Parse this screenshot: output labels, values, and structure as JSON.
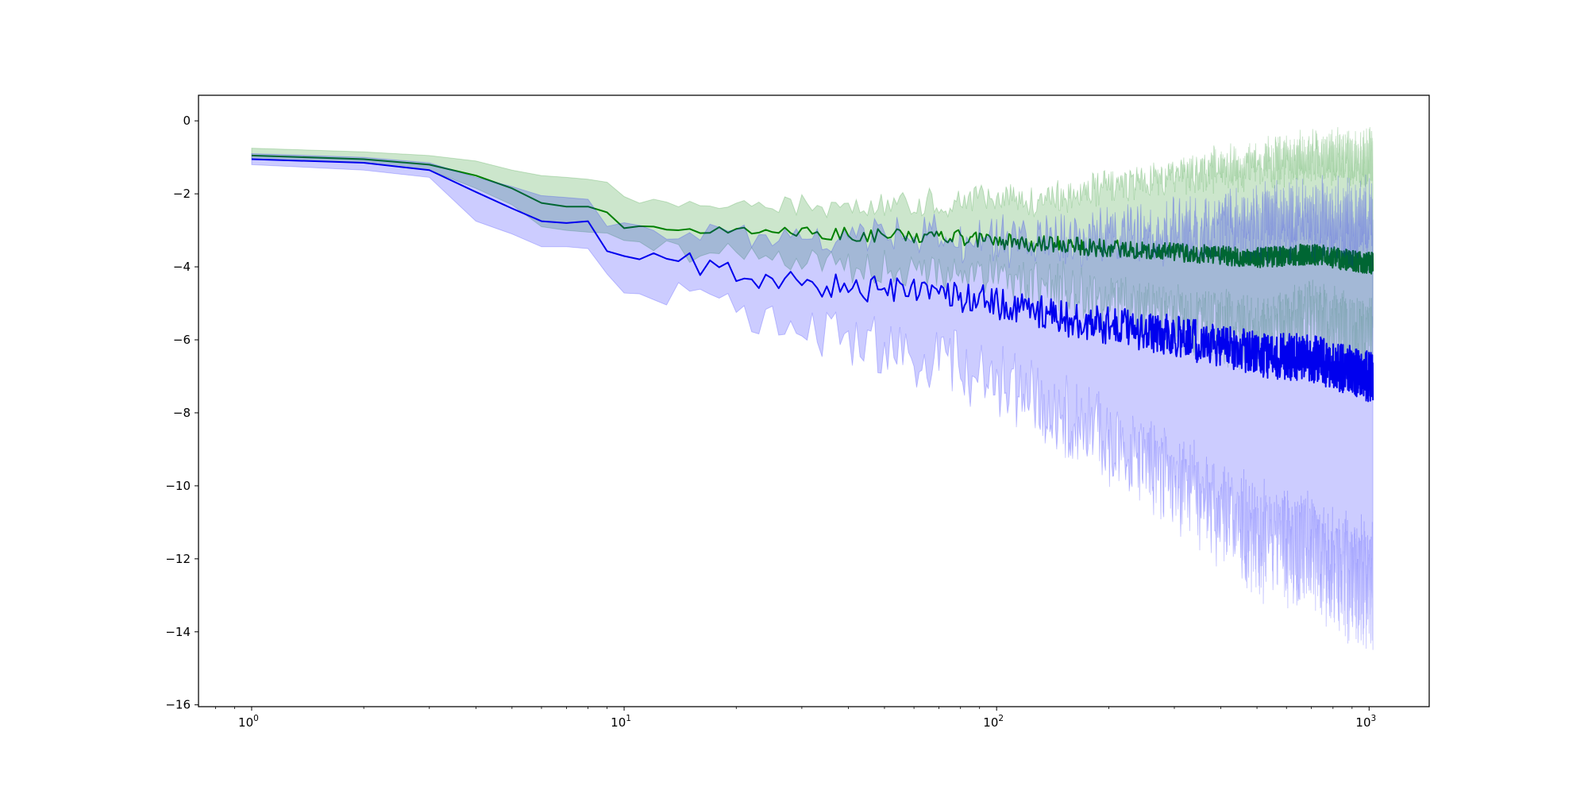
{
  "chart_data": {
    "type": "line",
    "title": "",
    "xlabel": "",
    "ylabel": "",
    "xscale": "log",
    "xlim": [
      0.72,
      1450
    ],
    "ylim": [
      -16.05,
      0.7
    ],
    "grid": false,
    "legend": "none",
    "x_ticks": [
      {
        "base": "10",
        "exp": "0",
        "value": 1
      },
      {
        "base": "10",
        "exp": "1",
        "value": 10
      },
      {
        "base": "10",
        "exp": "2",
        "value": 100
      },
      {
        "base": "10",
        "exp": "3",
        "value": 1000
      }
    ],
    "y_ticks": [
      {
        "label": "0",
        "value": 0
      },
      {
        "label": "−2",
        "value": -2
      },
      {
        "label": "−4",
        "value": -4
      },
      {
        "label": "−6",
        "value": -6
      },
      {
        "label": "−8",
        "value": -8
      },
      {
        "label": "−10",
        "value": -10
      },
      {
        "label": "−12",
        "value": -12
      },
      {
        "label": "−14",
        "value": -14
      },
      {
        "label": "−16",
        "value": -16
      }
    ],
    "x_range": [
      1,
      1024
    ],
    "series": [
      {
        "color": "#008000",
        "band_color": "#008000",
        "band_opacity": 0.2,
        "mean": [
          [
            1,
            -0.95
          ],
          [
            2,
            -1.05
          ],
          [
            3,
            -1.2
          ],
          [
            4,
            -1.5
          ],
          [
            5,
            -1.85
          ],
          [
            6,
            -2.25
          ],
          [
            7,
            -2.35
          ],
          [
            8,
            -2.35
          ],
          [
            9,
            -2.55
          ],
          [
            10,
            -2.85
          ],
          [
            12,
            -2.95
          ],
          [
            15,
            -2.95
          ],
          [
            20,
            -3.0
          ],
          [
            30,
            -3.05
          ],
          [
            50,
            -3.15
          ],
          [
            70,
            -3.15
          ],
          [
            100,
            -3.3
          ],
          [
            150,
            -3.4
          ],
          [
            200,
            -3.5
          ],
          [
            300,
            -3.6
          ],
          [
            500,
            -3.75
          ],
          [
            700,
            -3.65
          ],
          [
            1000,
            -3.9
          ]
        ],
        "upper": [
          [
            1,
            -0.75
          ],
          [
            2,
            -0.85
          ],
          [
            3,
            -0.95
          ],
          [
            4,
            -1.1
          ],
          [
            5,
            -1.35
          ],
          [
            6,
            -1.5
          ],
          [
            7,
            -1.55
          ],
          [
            8,
            -1.6
          ],
          [
            9,
            -1.7
          ],
          [
            10,
            -2.0
          ],
          [
            12,
            -2.2
          ],
          [
            15,
            -2.3
          ],
          [
            20,
            -2.3
          ],
          [
            30,
            -2.3
          ],
          [
            50,
            -2.3
          ],
          [
            70,
            -2.2
          ],
          [
            100,
            -2.2
          ],
          [
            150,
            -2.1
          ],
          [
            200,
            -1.8
          ],
          [
            300,
            -1.5
          ],
          [
            500,
            -1.2
          ],
          [
            700,
            -1.0
          ],
          [
            1000,
            -1.0
          ]
        ],
        "lower": [
          [
            1,
            -1.05
          ],
          [
            2,
            -1.15
          ],
          [
            3,
            -1.35
          ],
          [
            4,
            -1.85
          ],
          [
            5,
            -2.3
          ],
          [
            6,
            -2.9
          ],
          [
            7,
            -3.0
          ],
          [
            8,
            -3.05
          ],
          [
            9,
            -3.25
          ],
          [
            10,
            -3.45
          ],
          [
            12,
            -3.55
          ],
          [
            15,
            -3.6
          ],
          [
            20,
            -3.7
          ],
          [
            30,
            -3.8
          ],
          [
            50,
            -4.0
          ],
          [
            70,
            -4.05
          ],
          [
            100,
            -4.3
          ],
          [
            150,
            -4.6
          ],
          [
            200,
            -5.0
          ],
          [
            300,
            -5.4
          ],
          [
            500,
            -5.8
          ],
          [
            700,
            -5.5
          ],
          [
            1000,
            -6.0
          ]
        ],
        "mean_noise": [
          0.05,
          0.12,
          0.22,
          0.3
        ],
        "band_noise": [
          0.1,
          0.3,
          0.6,
          1.2
        ]
      },
      {
        "color": "#0000ee",
        "band_color": "#0000ff",
        "band_opacity": 0.2,
        "mean": [
          [
            1,
            -1.05
          ],
          [
            2,
            -1.15
          ],
          [
            3,
            -1.35
          ],
          [
            4,
            -1.95
          ],
          [
            5,
            -2.4
          ],
          [
            6,
            -2.75
          ],
          [
            7,
            -2.8
          ],
          [
            8,
            -2.75
          ],
          [
            9,
            -3.5
          ],
          [
            10,
            -3.75
          ],
          [
            11,
            -3.95
          ],
          [
            12,
            -3.75
          ],
          [
            14,
            -3.9
          ],
          [
            15,
            -3.8
          ],
          [
            17,
            -4.1
          ],
          [
            20,
            -4.2
          ],
          [
            30,
            -4.5
          ],
          [
            50,
            -4.6
          ],
          [
            70,
            -4.7
          ],
          [
            100,
            -5.0
          ],
          [
            150,
            -5.4
          ],
          [
            200,
            -5.6
          ],
          [
            300,
            -5.9
          ],
          [
            500,
            -6.4
          ],
          [
            700,
            -6.5
          ],
          [
            1000,
            -7.0
          ]
        ],
        "upper": [
          [
            1,
            -0.9
          ],
          [
            2,
            -1.0
          ],
          [
            3,
            -1.15
          ],
          [
            4,
            -1.55
          ],
          [
            5,
            -1.8
          ],
          [
            6,
            -2.05
          ],
          [
            7,
            -2.1
          ],
          [
            8,
            -2.15
          ],
          [
            9,
            -2.7
          ],
          [
            10,
            -2.9
          ],
          [
            12,
            -3.0
          ],
          [
            15,
            -3.0
          ],
          [
            20,
            -3.1
          ],
          [
            30,
            -3.1
          ],
          [
            50,
            -3.2
          ],
          [
            70,
            -3.1
          ],
          [
            100,
            -3.3
          ],
          [
            150,
            -3.2
          ],
          [
            200,
            -3.1
          ],
          [
            300,
            -3.0
          ],
          [
            500,
            -2.8
          ],
          [
            700,
            -2.6
          ],
          [
            1000,
            -2.8
          ]
        ],
        "lower": [
          [
            1,
            -1.2
          ],
          [
            2,
            -1.35
          ],
          [
            3,
            -1.55
          ],
          [
            4,
            -2.75
          ],
          [
            5,
            -3.1
          ],
          [
            6,
            -3.45
          ],
          [
            7,
            -3.45
          ],
          [
            8,
            -3.5
          ],
          [
            9,
            -4.3
          ],
          [
            10,
            -4.65
          ],
          [
            12,
            -4.7
          ],
          [
            15,
            -4.85
          ],
          [
            20,
            -5.3
          ],
          [
            30,
            -5.7
          ],
          [
            50,
            -6.2
          ],
          [
            70,
            -6.5
          ],
          [
            100,
            -7.0
          ],
          [
            150,
            -8.0
          ],
          [
            200,
            -8.7
          ],
          [
            300,
            -9.8
          ],
          [
            500,
            -11.5
          ],
          [
            700,
            -11.8
          ],
          [
            1000,
            -12.8
          ]
        ],
        "mean_noise": [
          0.1,
          0.25,
          0.45,
          0.7
        ],
        "band_noise": [
          0.15,
          0.4,
          0.9,
          1.6
        ]
      }
    ]
  }
}
